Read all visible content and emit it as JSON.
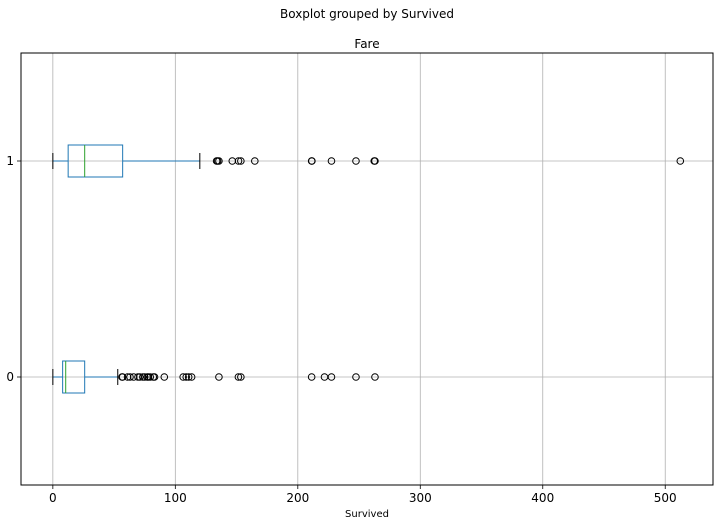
{
  "chart_data": {
    "type": "boxplot",
    "orientation": "horizontal",
    "suptitle": "Boxplot grouped by Survived",
    "title": "Fare",
    "xlabel": "Survived",
    "ylabel": "",
    "xlim": [
      -26,
      539
    ],
    "xticks": [
      0,
      100,
      200,
      300,
      400,
      500
    ],
    "grid": true,
    "categories": [
      "0",
      "1"
    ],
    "boxes": [
      {
        "category": "0",
        "whisker_low": 0,
        "q1": 8,
        "median": 10.5,
        "q3": 26,
        "whisker_high": 53,
        "outliers": [
          56.5,
          57,
          61,
          63,
          66,
          69.5,
          71,
          73.5,
          75,
          77,
          78,
          79.5,
          82,
          83,
          91,
          106.4,
          108.9,
          110.9,
          113.3,
          135.6,
          151.5,
          153.5,
          211.3,
          221.8,
          227.5,
          247.5,
          263
        ]
      },
      {
        "category": "1",
        "whisker_low": 0,
        "q1": 12.5,
        "median": 26,
        "q3": 57,
        "whisker_high": 120,
        "outliers": [
          133.7,
          134.5,
          135.6,
          146.5,
          151.6,
          153.5,
          164.9,
          211.3,
          211.5,
          227.5,
          247.5,
          262.4,
          263,
          512.3
        ]
      }
    ],
    "colors": {
      "box": "#1f77b4",
      "median": "#2ca02c",
      "whisker_cap": "#000000",
      "outlier": "#000000",
      "grid": "#b0b0b0"
    }
  }
}
